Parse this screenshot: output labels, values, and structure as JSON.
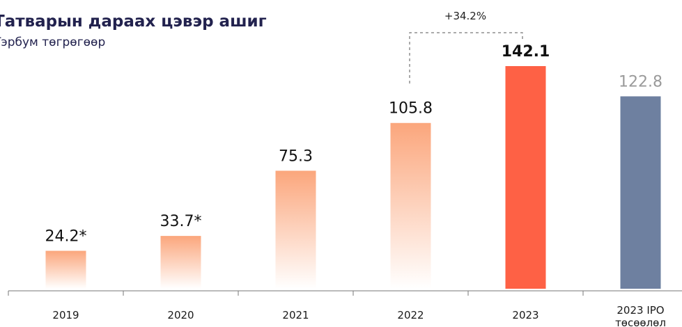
{
  "chart_data": {
    "type": "bar",
    "title": "Татварын дараах цэвэр ашиг",
    "subtitle": "Тэрбум төгрөгөөр",
    "annotation": "+34.2%",
    "categories": [
      "2019",
      "2020",
      "2021",
      "2022",
      "2023",
      "2023 IPO төсөөлөл"
    ],
    "values": [
      24.2,
      33.7,
      75.3,
      105.8,
      142.1,
      122.8
    ],
    "value_labels": [
      "24.2*",
      "33.7*",
      "75.3",
      "105.8",
      "142.1",
      "122.8"
    ],
    "colors": [
      "gradient:#fba67c",
      "gradient:#fba67c",
      "gradient:#fba67c",
      "gradient:#fba67c",
      "#fe6145",
      "#6e80a0"
    ],
    "label_colors": [
      "#111111",
      "#111111",
      "#111111",
      "#111111",
      "#111111",
      "#9a9a9a"
    ]
  }
}
